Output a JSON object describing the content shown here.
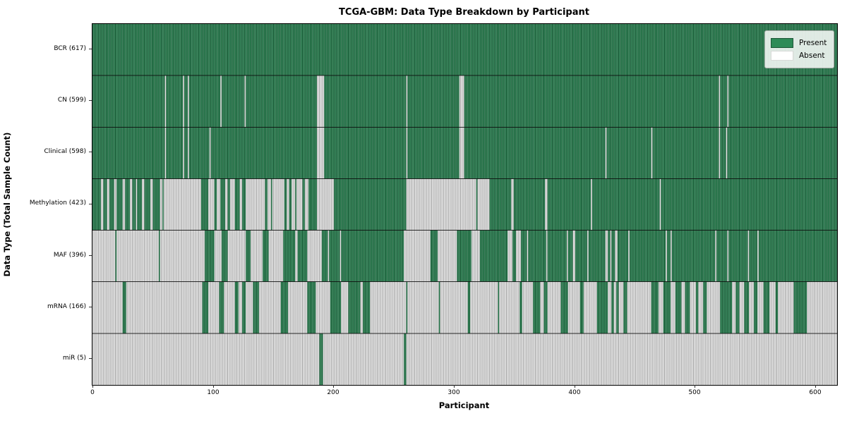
{
  "title": "TCGA-GBM: Data Type Breakdown by Participant",
  "x_axis": {
    "label": "Participant",
    "ticks": [
      0,
      100,
      200,
      300,
      400,
      500,
      600
    ]
  },
  "y_axis": {
    "label": "Data Type (Total Sample Count)"
  },
  "legend": {
    "items": [
      {
        "label": "Present",
        "color": "#2E8B57"
      },
      {
        "label": "Absent",
        "color": "#ffffff"
      }
    ],
    "position": "upper right"
  },
  "colors": {
    "present": {
      "body": "#35905e",
      "edge": "#1c5737"
    },
    "absent": {
      "body": "#ffffff",
      "edge": "#9d9d9d"
    },
    "separator": "rgba(10,10,10,0.85)"
  },
  "chart_data": {
    "type": "heatmap",
    "title": "TCGA-GBM: Data Type Breakdown by Participant",
    "xlabel": "Participant",
    "ylabel": "Data Type (Total Sample Count)",
    "x_range": [
      0,
      617
    ],
    "n_participants": 617,
    "cell_states": [
      "Present",
      "Absent"
    ],
    "rows": [
      {
        "label": "BCR (617)",
        "data_type": "BCR",
        "total": 617,
        "absent_runs": []
      },
      {
        "label": "CN (599)",
        "data_type": "CN",
        "total": 599,
        "absent_runs": [
          [
            60,
            1
          ],
          [
            75,
            1
          ],
          [
            79,
            1
          ],
          [
            106,
            1
          ],
          [
            126,
            1
          ],
          [
            186,
            6
          ],
          [
            260,
            1
          ],
          [
            304,
            4
          ],
          [
            519,
            1
          ],
          [
            526,
            1
          ]
        ]
      },
      {
        "label": "Clinical (598)",
        "data_type": "Clinical",
        "total": 598,
        "absent_runs": [
          [
            60,
            1
          ],
          [
            75,
            1
          ],
          [
            79,
            1
          ],
          [
            97,
            1
          ],
          [
            186,
            6
          ],
          [
            260,
            1
          ],
          [
            304,
            4
          ],
          [
            425,
            1
          ],
          [
            463,
            1
          ],
          [
            519,
            1
          ],
          [
            525,
            1
          ]
        ]
      },
      {
        "label": "Methylation (423)",
        "data_type": "Methylation",
        "total": 423,
        "absent_runs": [
          [
            7,
            2
          ],
          [
            12,
            2
          ],
          [
            18,
            2
          ],
          [
            25,
            2
          ],
          [
            31,
            2
          ],
          [
            36,
            1
          ],
          [
            41,
            2
          ],
          [
            48,
            2
          ],
          [
            56,
            2
          ],
          [
            59,
            31
          ],
          [
            96,
            5
          ],
          [
            103,
            3
          ],
          [
            110,
            2
          ],
          [
            114,
            4
          ],
          [
            122,
            2
          ],
          [
            127,
            7
          ],
          [
            134,
            9
          ],
          [
            145,
            3
          ],
          [
            149,
            10
          ],
          [
            161,
            2
          ],
          [
            165,
            3
          ],
          [
            169,
            5
          ],
          [
            176,
            3
          ],
          [
            186,
            14
          ],
          [
            260,
            58
          ],
          [
            319,
            10
          ],
          [
            347,
            2
          ],
          [
            375,
            2
          ],
          [
            413,
            1
          ],
          [
            470,
            1
          ]
        ]
      },
      {
        "label": "MAF (396)",
        "data_type": "MAF",
        "total": 396,
        "absent_runs": [
          [
            0,
            19
          ],
          [
            20,
            35
          ],
          [
            56,
            37
          ],
          [
            101,
            6
          ],
          [
            112,
            15
          ],
          [
            131,
            10
          ],
          [
            146,
            12
          ],
          [
            168,
            2
          ],
          [
            178,
            12
          ],
          [
            195,
            1
          ],
          [
            205,
            1
          ],
          [
            258,
            22
          ],
          [
            286,
            16
          ],
          [
            314,
            7
          ],
          [
            344,
            4
          ],
          [
            351,
            4
          ],
          [
            360,
            1
          ],
          [
            376,
            1
          ],
          [
            393,
            1
          ],
          [
            398,
            2
          ],
          [
            410,
            1
          ],
          [
            425,
            2
          ],
          [
            429,
            1
          ],
          [
            433,
            2
          ],
          [
            444,
            1
          ],
          [
            475,
            1
          ],
          [
            479,
            1
          ],
          [
            516,
            1
          ],
          [
            526,
            1
          ],
          [
            543,
            1
          ],
          [
            551,
            1
          ]
        ]
      },
      {
        "label": "mRNA (166)",
        "data_type": "mRNA",
        "total": 166,
        "present_runs": [
          [
            25,
            3
          ],
          [
            91,
            5
          ],
          [
            105,
            4
          ],
          [
            118,
            3
          ],
          [
            124,
            3
          ],
          [
            133,
            5
          ],
          [
            156,
            6
          ],
          [
            178,
            7
          ],
          [
            197,
            9
          ],
          [
            212,
            10
          ],
          [
            224,
            6
          ],
          [
            260,
            1
          ],
          [
            287,
            1
          ],
          [
            311,
            2
          ],
          [
            336,
            1
          ],
          [
            354,
            2
          ],
          [
            365,
            6
          ],
          [
            374,
            3
          ],
          [
            388,
            6
          ],
          [
            404,
            3
          ],
          [
            418,
            9
          ],
          [
            430,
            2
          ],
          [
            434,
            2
          ],
          [
            440,
            3
          ],
          [
            463,
            6
          ],
          [
            473,
            6
          ],
          [
            483,
            5
          ],
          [
            491,
            4
          ],
          [
            500,
            2
          ],
          [
            506,
            3
          ],
          [
            520,
            10
          ],
          [
            533,
            3
          ],
          [
            540,
            4
          ],
          [
            548,
            3
          ],
          [
            556,
            5
          ],
          [
            566,
            2
          ],
          [
            581,
            11
          ]
        ]
      },
      {
        "label": "miR (5)",
        "data_type": "miR",
        "total": 5,
        "present_runs": [
          [
            188,
            3
          ],
          [
            258,
            2
          ]
        ]
      }
    ]
  }
}
